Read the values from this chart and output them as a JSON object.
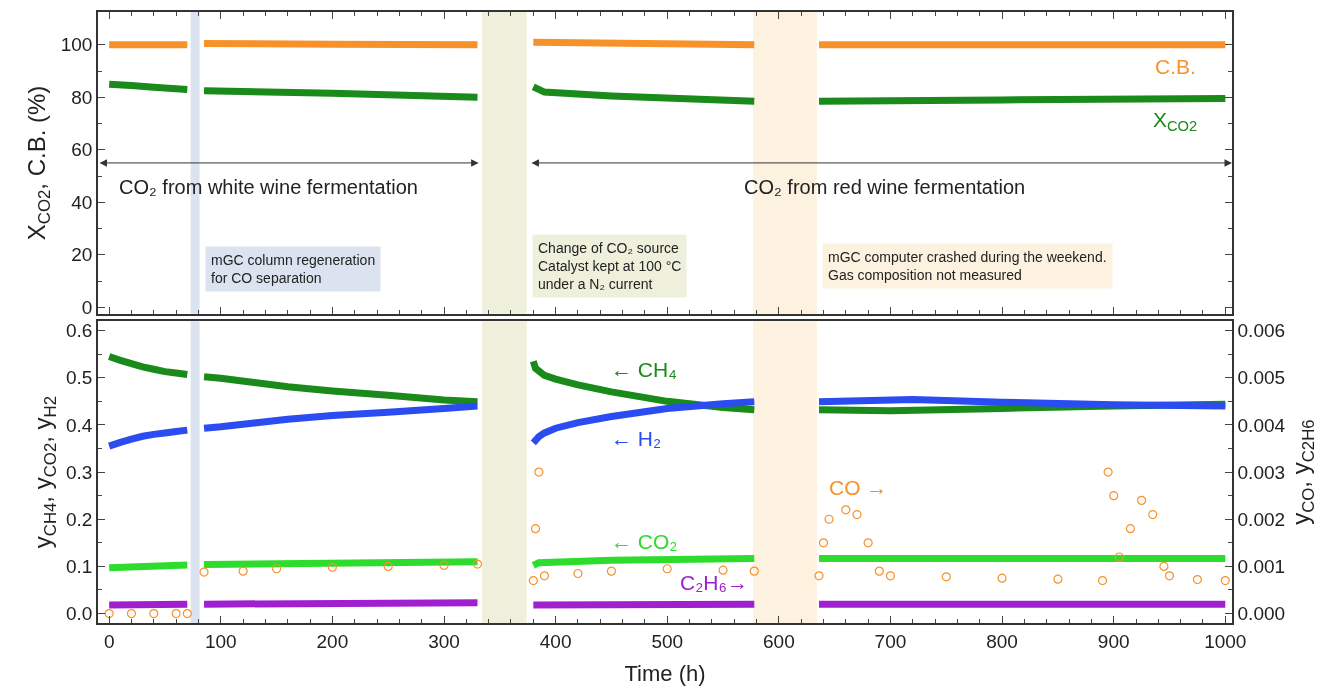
{
  "chart_data": [
    {
      "type": "line",
      "ylabel": "X$_{CO2}$, C.B. (%)",
      "xlim": [
        -10,
        1006
      ],
      "ylim": [
        -2.5,
        112.5
      ],
      "xticks": [
        0,
        100,
        200,
        300,
        400,
        500,
        600,
        700,
        800,
        900,
        1000
      ],
      "yticks": [
        0,
        20,
        40,
        60,
        80,
        100
      ],
      "tick_labels": "y",
      "grid": false,
      "series": [
        {
          "name": "C.B.",
          "color": "#f7922b",
          "x": [
            0,
            70,
            76,
            85,
            200,
            330,
            350,
            380,
            480,
            578,
            600,
            636,
            800,
            1000
          ],
          "values": [
            100,
            100,
            null,
            100.5,
            100.2,
            100,
            null,
            101,
            100.5,
            100,
            null,
            100,
            100,
            100
          ]
        },
        {
          "name": "X$_{CO2}$",
          "color": "#1a8a1a",
          "x": [
            0,
            20,
            40,
            70,
            76,
            85,
            200,
            330,
            350,
            380,
            390,
            450,
            578,
            600,
            636,
            800,
            1000
          ],
          "values": [
            85,
            84.5,
            83.8,
            83,
            null,
            82.5,
            81.5,
            80,
            null,
            84,
            82,
            80.5,
            78.5,
            null,
            78.5,
            79,
            79.5
          ]
        }
      ],
      "bands": [
        {
          "axis": "x",
          "from": 73,
          "to": 81,
          "color": "#dbe3f0",
          "label": "mGC column regeneration\nfor CO separation"
        },
        {
          "axis": "x",
          "from": 334,
          "to": 374,
          "color": "#eef0dc",
          "label": "Change of CO₂ source\nCatalyst kept at 100 °C\nunder a N₂ current"
        },
        {
          "axis": "x",
          "from": 577,
          "to": 634,
          "color": "#fdf1e0",
          "label": "mGC computer crashed during the weekend.\nGas composition not measured"
        }
      ],
      "annotations": [
        "CO₂ from white wine fermentation",
        "CO₂ from red wine fermentation"
      ]
    },
    {
      "type": "line",
      "xlabel": "Time (h)",
      "ylabel": "y$_{CH4}$, y$_{CO2}$, y$_{H2}$",
      "y2label": "y$_{CO}$, y$_{C2H6}$",
      "xlim": [
        -10,
        1006
      ],
      "ylim": [
        -0.02,
        0.62
      ],
      "y2lim": [
        -0.0002,
        0.0062
      ],
      "xticks": [
        0,
        100,
        200,
        300,
        400,
        500,
        600,
        700,
        800,
        900,
        1000
      ],
      "yticks": [
        {
          "value": 0,
          "label": "0.0"
        },
        {
          "value": 0.1,
          "label": "0.1"
        },
        {
          "value": 0.2,
          "label": "0.2"
        },
        {
          "value": 0.3,
          "label": "0.3"
        },
        {
          "value": 0.4,
          "label": "0.4"
        },
        {
          "value": 0.5,
          "label": "0.5"
        },
        {
          "value": 0.6,
          "label": "0.6"
        }
      ],
      "y2ticks": [
        {
          "value": 0,
          "label": "0.000"
        },
        {
          "value": 0.001,
          "label": "0.001"
        },
        {
          "value": 0.002,
          "label": "0.002"
        },
        {
          "value": 0.003,
          "label": "0.003"
        },
        {
          "value": 0.004,
          "label": "0.004"
        },
        {
          "value": 0.005,
          "label": "0.005"
        },
        {
          "value": 0.006,
          "label": "0.006"
        }
      ],
      "grid": false,
      "series": [
        {
          "name": "← CH₄",
          "color": "#1a8a1a",
          "x": [
            0,
            10,
            20,
            30,
            40,
            50,
            60,
            70,
            76,
            85,
            100,
            130,
            160,
            200,
            250,
            300,
            330,
            350,
            380,
            382,
            390,
            400,
            420,
            450,
            500,
            550,
            578,
            600,
            636,
            700,
            800,
            900,
            1000
          ],
          "values": [
            0.545,
            0.537,
            0.53,
            0.523,
            0.518,
            0.513,
            0.51,
            0.507,
            null,
            0.502,
            0.499,
            0.49,
            0.481,
            0.472,
            0.463,
            0.453,
            0.449,
            null,
            0.535,
            0.52,
            0.505,
            0.497,
            0.485,
            0.47,
            0.45,
            0.437,
            0.432,
            null,
            0.432,
            0.43,
            0.435,
            0.44,
            0.444
          ]
        },
        {
          "name": "← H₂",
          "color": "#2a4cf0",
          "x": [
            0,
            10,
            20,
            30,
            40,
            50,
            60,
            70,
            76,
            85,
            100,
            130,
            160,
            200,
            250,
            300,
            330,
            350,
            380,
            385,
            390,
            400,
            420,
            450,
            500,
            550,
            578,
            600,
            636,
            720,
            800,
            900,
            1000
          ],
          "values": [
            0.355,
            0.363,
            0.37,
            0.376,
            0.38,
            0.383,
            0.386,
            0.389,
            null,
            0.393,
            0.396,
            0.404,
            0.412,
            0.42,
            0.427,
            0.435,
            0.44,
            null,
            0.362,
            0.375,
            0.383,
            0.393,
            0.405,
            0.418,
            0.435,
            0.445,
            0.449,
            null,
            0.449,
            0.454,
            0.448,
            0.443,
            0.44
          ]
        },
        {
          "name": "← CO₂",
          "color": "#2ddc2d",
          "x": [
            0,
            70,
            76,
            85,
            330,
            350,
            380,
            385,
            450,
            578,
            600,
            636,
            1000
          ],
          "values": [
            0.097,
            0.103,
            null,
            0.104,
            0.11,
            null,
            0.102,
            0.108,
            0.113,
            0.117,
            null,
            0.117,
            0.117
          ]
        },
        {
          "name": "C₂H₆→",
          "color": "#a020d0",
          "axis": "y2",
          "x": [
            0,
            70,
            76,
            85,
            330,
            350,
            380,
            578,
            600,
            636,
            1000
          ],
          "values": [
            0.00018,
            0.0002,
            null,
            0.0002,
            0.00023,
            null,
            0.00018,
            0.0002,
            null,
            0.0002,
            0.0002
          ]
        },
        {
          "name": "CO →",
          "type": "scatter",
          "marker": "circle",
          "color": "#f7922b",
          "axis": "y2",
          "x": [
            0,
            20,
            40,
            60,
            70,
            85,
            120,
            150,
            200,
            250,
            300,
            330,
            380,
            382,
            385,
            390,
            420,
            450,
            500,
            550,
            578,
            636,
            640,
            645,
            660,
            670,
            680,
            690,
            700,
            750,
            800,
            850,
            890,
            895,
            900,
            905,
            915,
            925,
            935,
            945,
            950,
            975,
            1000
          ],
          "values": [
            0,
            0,
            0,
            0,
            0,
            0.00088,
            0.0009,
            0.00095,
            0.00098,
            0.001,
            0.00102,
            0.00105,
            0.0007,
            0.0018,
            0.003,
            0.0008,
            0.00085,
            0.0009,
            0.00095,
            0.00092,
            0.0009,
            0.0008,
            0.0015,
            0.002,
            0.0022,
            0.0021,
            0.0015,
            0.0009,
            0.0008,
            0.00078,
            0.00075,
            0.00073,
            0.0007,
            0.003,
            0.0025,
            0.0012,
            0.0018,
            0.0024,
            0.0021,
            0.001,
            0.0008,
            0.00072,
            0.0007
          ]
        }
      ],
      "bands": [
        {
          "axis": "x",
          "from": 73,
          "to": 81,
          "color": "#dbe3f0"
        },
        {
          "axis": "x",
          "from": 334,
          "to": 374,
          "color": "#eef0dc"
        },
        {
          "axis": "x",
          "from": 577,
          "to": 634,
          "color": "#fdf1e0"
        }
      ]
    }
  ]
}
